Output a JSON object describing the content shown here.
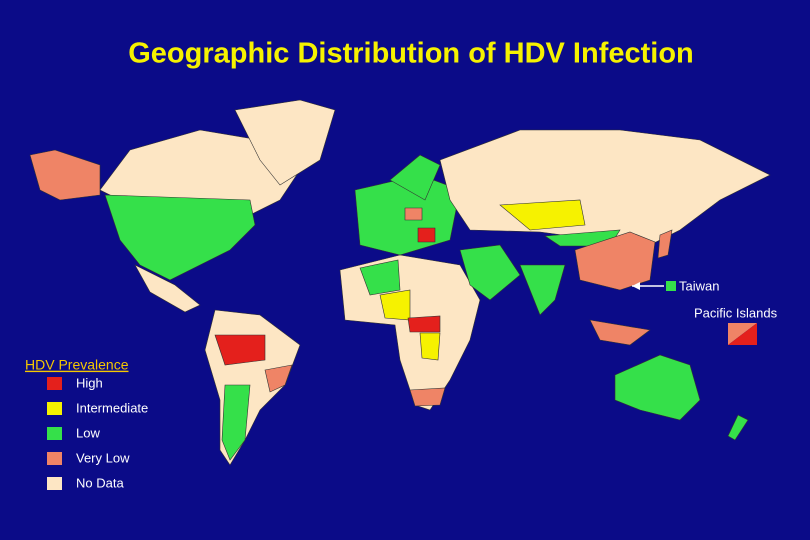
{
  "title": "Geographic Distribution of HDV Infection",
  "legend": {
    "title": "HDV Prevalence",
    "items": [
      {
        "label": "High",
        "color": "#e4201c"
      },
      {
        "label": "Intermediate",
        "color": "#f6f200"
      },
      {
        "label": "Low",
        "color": "#35e04a"
      },
      {
        "label": "Very Low",
        "color": "#ef8466"
      },
      {
        "label": "No Data",
        "color": "#fde6c4"
      }
    ]
  },
  "annotations": [
    {
      "label": "Taiwan"
    },
    {
      "label": "Pacific Islands"
    }
  ]
}
